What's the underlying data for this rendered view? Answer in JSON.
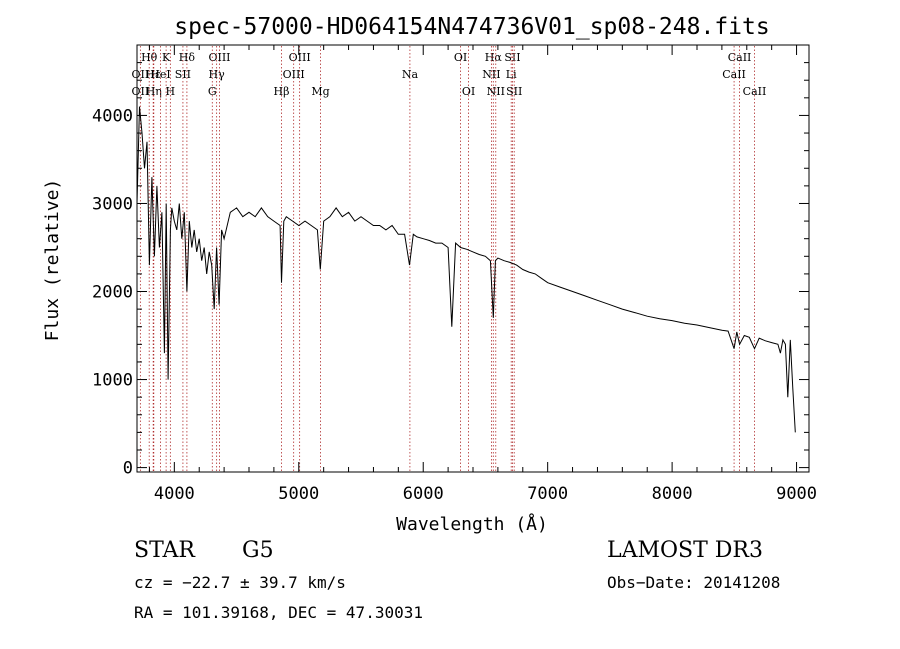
{
  "chart_data": {
    "type": "line",
    "title": "spec-57000-HD064154N474736V01_sp08-248.fits",
    "xlabel": "Wavelength (Å)",
    "ylabel": "Flux (relative)",
    "xlim": [
      3700,
      9100
    ],
    "ylim": [
      -50,
      4800
    ],
    "xticks": [
      4000,
      5000,
      6000,
      7000,
      8000,
      9000
    ],
    "yticks": [
      0,
      1000,
      2000,
      3000,
      4000
    ],
    "series": [
      {
        "name": "flux",
        "x": [
          3700,
          3720,
          3740,
          3760,
          3780,
          3800,
          3820,
          3840,
          3860,
          3880,
          3900,
          3920,
          3935,
          3950,
          3968,
          3980,
          4000,
          4020,
          4040,
          4060,
          4080,
          4101,
          4120,
          4140,
          4160,
          4180,
          4200,
          4220,
          4240,
          4260,
          4280,
          4300,
          4320,
          4340,
          4360,
          4380,
          4400,
          4450,
          4500,
          4550,
          4600,
          4650,
          4700,
          4750,
          4800,
          4850,
          4861,
          4880,
          4900,
          4950,
          5000,
          5050,
          5100,
          5150,
          5173,
          5200,
          5250,
          5300,
          5350,
          5400,
          5450,
          5500,
          5550,
          5600,
          5650,
          5700,
          5750,
          5800,
          5850,
          5890,
          5920,
          5950,
          6000,
          6050,
          6100,
          6150,
          6200,
          6230,
          6260,
          6300,
          6350,
          6400,
          6450,
          6500,
          6540,
          6563,
          6580,
          6600,
          6650,
          6700,
          6750,
          6800,
          6850,
          6900,
          6950,
          7000,
          7100,
          7200,
          7300,
          7400,
          7500,
          7600,
          7700,
          7800,
          7900,
          8000,
          8100,
          8200,
          8300,
          8400,
          8450,
          8498,
          8520,
          8542,
          8580,
          8620,
          8662,
          8700,
          8750,
          8800,
          8850,
          8870,
          8890,
          8910,
          8930,
          8950,
          8970,
          8990
        ],
        "values": [
          3000,
          4100,
          3800,
          3400,
          3700,
          2300,
          3300,
          2400,
          3200,
          2500,
          2900,
          1300,
          3000,
          1000,
          2700,
          2950,
          2800,
          2700,
          3000,
          2600,
          2900,
          2000,
          2800,
          2500,
          2700,
          2450,
          2600,
          2350,
          2500,
          2200,
          2450,
          2300,
          1800,
          2500,
          1850,
          2700,
          2600,
          2900,
          2950,
          2850,
          2900,
          2850,
          2950,
          2850,
          2800,
          2750,
          2100,
          2800,
          2850,
          2800,
          2750,
          2800,
          2750,
          2700,
          2250,
          2800,
          2850,
          2950,
          2850,
          2900,
          2800,
          2850,
          2800,
          2750,
          2750,
          2700,
          2750,
          2650,
          2650,
          2300,
          2650,
          2620,
          2600,
          2580,
          2550,
          2550,
          2500,
          1600,
          2550,
          2500,
          2480,
          2450,
          2420,
          2400,
          2350,
          1700,
          2350,
          2380,
          2350,
          2330,
          2300,
          2250,
          2220,
          2200,
          2150,
          2100,
          2050,
          2000,
          1950,
          1900,
          1850,
          1800,
          1760,
          1720,
          1690,
          1670,
          1640,
          1620,
          1590,
          1560,
          1550,
          1350,
          1540,
          1400,
          1500,
          1480,
          1350,
          1470,
          1440,
          1420,
          1400,
          1300,
          1450,
          1400,
          800,
          1450,
          900,
          400
        ]
      }
    ],
    "line_markers": [
      {
        "label": "Hθ",
        "x": 3798,
        "row": 1
      },
      {
        "label": "OII",
        "x": 3727,
        "row": 2
      },
      {
        "label": "OII",
        "x": 3727,
        "row": 3
      },
      {
        "label": "Hε",
        "x": 3830,
        "row": 2
      },
      {
        "label": "Hη",
        "x": 3835,
        "row": 3
      },
      {
        "label": "K",
        "x": 3934,
        "row": 1
      },
      {
        "label": "HeI",
        "x": 3889,
        "row": 2
      },
      {
        "label": "SII",
        "x": 4069,
        "row": 2
      },
      {
        "label": "H",
        "x": 3968,
        "row": 3
      },
      {
        "label": "Hδ",
        "x": 4101,
        "row": 1
      },
      {
        "label": "OIII",
        "x": 4363,
        "row": 1
      },
      {
        "label": "Hγ",
        "x": 4340,
        "row": 2
      },
      {
        "label": "G",
        "x": 4305,
        "row": 3
      },
      {
        "label": "Hβ",
        "x": 4861,
        "row": 3
      },
      {
        "label": "OIII",
        "x": 5007,
        "row": 1
      },
      {
        "label": "OIII",
        "x": 4959,
        "row": 2
      },
      {
        "label": "Mg",
        "x": 5175,
        "row": 3
      },
      {
        "label": "Na",
        "x": 5893,
        "row": 2
      },
      {
        "label": "OI",
        "x": 6300,
        "row": 1
      },
      {
        "label": "OI",
        "x": 6364,
        "row": 3
      },
      {
        "label": "Hα",
        "x": 6563,
        "row": 1
      },
      {
        "label": "SII",
        "x": 6717,
        "row": 1
      },
      {
        "label": "NII",
        "x": 6548,
        "row": 2
      },
      {
        "label": "Li",
        "x": 6707,
        "row": 2
      },
      {
        "label": "NII",
        "x": 6583,
        "row": 3
      },
      {
        "label": "SII",
        "x": 6731,
        "row": 3
      },
      {
        "label": "CaII",
        "x": 8542,
        "row": 1
      },
      {
        "label": "CaII",
        "x": 8498,
        "row": 2
      },
      {
        "label": "CaII",
        "x": 8662,
        "row": 3
      }
    ]
  },
  "info": {
    "class_label": "STAR",
    "subclass": "G5",
    "survey": "LAMOST DR3",
    "cz": "cz = −22.7 ± 39.7 km/s",
    "obs_date": "Obs−Date: 20141208",
    "coords": "RA = 101.39168, DEC =  47.30031"
  }
}
